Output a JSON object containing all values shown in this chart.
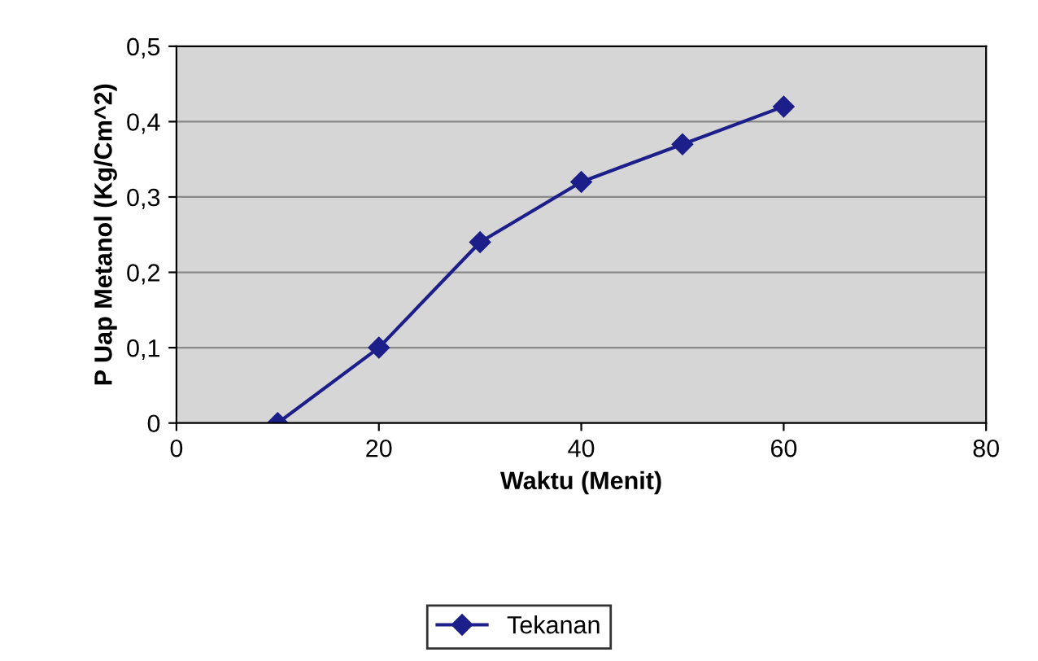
{
  "chart_data": {
    "type": "line",
    "xlabel": "Waktu (Menit)",
    "ylabel": "P Uap Metanol (Kg/Cm^2)",
    "x": [
      10,
      20,
      30,
      40,
      50,
      60
    ],
    "series": [
      {
        "name": "Tekanan",
        "color": "#1c1f8a",
        "values": [
          0.0,
          0.1,
          0.24,
          0.32,
          0.37,
          0.42
        ]
      }
    ],
    "xlim": [
      0,
      80
    ],
    "xticks": [
      0,
      20,
      40,
      60,
      80
    ],
    "ylim": [
      0,
      0.5
    ],
    "yticks": [
      {
        "value": 0,
        "label": "0"
      },
      {
        "value": 0.1,
        "label": "0,1"
      },
      {
        "value": 0.2,
        "label": "0,2"
      },
      {
        "value": 0.3,
        "label": "0,3"
      },
      {
        "value": 0.4,
        "label": "0,4"
      },
      {
        "value": 0.5,
        "label": "0,5"
      }
    ],
    "grid": "y",
    "legend": "bottom",
    "marker": "diamond",
    "line_style": "solid"
  }
}
